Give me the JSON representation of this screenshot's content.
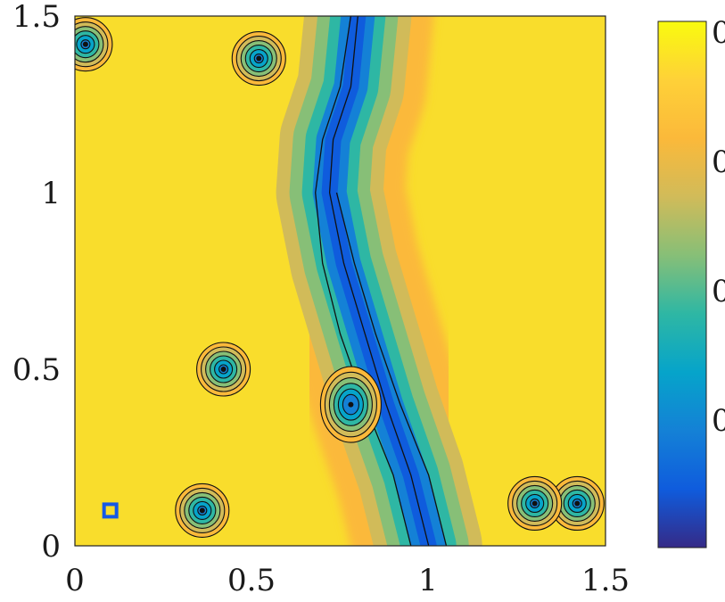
{
  "chart_data": {
    "type": "heatmap",
    "subtype": "filled-contour",
    "title": "",
    "xlabel": "",
    "ylabel": "",
    "xlim": [
      0,
      1.5
    ],
    "ylim": [
      0,
      1.5
    ],
    "x_ticks": [
      "0",
      "0.5",
      "1",
      "1.5"
    ],
    "y_ticks": [
      "0",
      "0.5",
      "1",
      "1.5"
    ],
    "x_tick_values": [
      0,
      0.5,
      1,
      1.5
    ],
    "y_tick_values": [
      0,
      0.5,
      1,
      1.5
    ],
    "colormap": "parula",
    "colormap_stops": [
      "#352a87",
      "#0f5cdd",
      "#1481d6",
      "#06a4ca",
      "#2eb7a4",
      "#87bf77",
      "#d1bb59",
      "#fbb93a",
      "#fed138",
      "#f9fb0e"
    ],
    "colorbar_tick_labels": [
      "0",
      "0",
      "0",
      "0"
    ],
    "colorbar_ticks_truncated": true,
    "grid": false,
    "marker": {
      "shape": "square",
      "color": "#1558e6",
      "x": 0.1,
      "y": 0.1
    },
    "features": [
      {
        "name": "diagonal low band (band 1)",
        "polyline": [
          [
            0.95,
            0
          ],
          [
            0.9,
            0.2
          ],
          [
            0.82,
            0.4
          ],
          [
            0.75,
            0.6
          ],
          [
            0.7,
            0.8
          ],
          [
            0.68,
            1.0
          ],
          [
            0.7,
            1.15
          ],
          [
            0.75,
            1.3
          ],
          [
            0.78,
            1.5
          ]
        ]
      },
      {
        "name": "diagonal low band (band 2)",
        "polyline": [
          [
            1.0,
            0
          ],
          [
            0.95,
            0.2
          ],
          [
            0.88,
            0.4
          ],
          [
            0.82,
            0.6
          ],
          [
            0.76,
            0.8
          ],
          [
            0.72,
            1.0
          ],
          [
            0.73,
            1.15
          ],
          [
            0.78,
            1.3
          ],
          [
            0.8,
            1.5
          ]
        ]
      },
      {
        "name": "diagonal low band (band 3)",
        "polyline": [
          [
            1.05,
            0
          ],
          [
            1.0,
            0.2
          ],
          [
            0.92,
            0.4
          ],
          [
            0.85,
            0.6
          ],
          [
            0.79,
            0.8
          ],
          [
            0.74,
            1.0
          ]
        ]
      }
    ],
    "spots": [
      {
        "x": 0.42,
        "y": 0.5,
        "label": "local minimum"
      },
      {
        "x": 1.42,
        "y": 0.12,
        "label": "local minimum"
      },
      {
        "x": 1.3,
        "y": 0.12,
        "label": "local minimum"
      },
      {
        "x": 0.36,
        "y": 0.1,
        "label": "local minimum"
      },
      {
        "x": 0.52,
        "y": 1.38,
        "label": "local minimum"
      },
      {
        "x": 0.03,
        "y": 1.42,
        "label": "local minimum"
      },
      {
        "x": 0.78,
        "y": 0.4,
        "label": "deepest minimum"
      }
    ]
  }
}
